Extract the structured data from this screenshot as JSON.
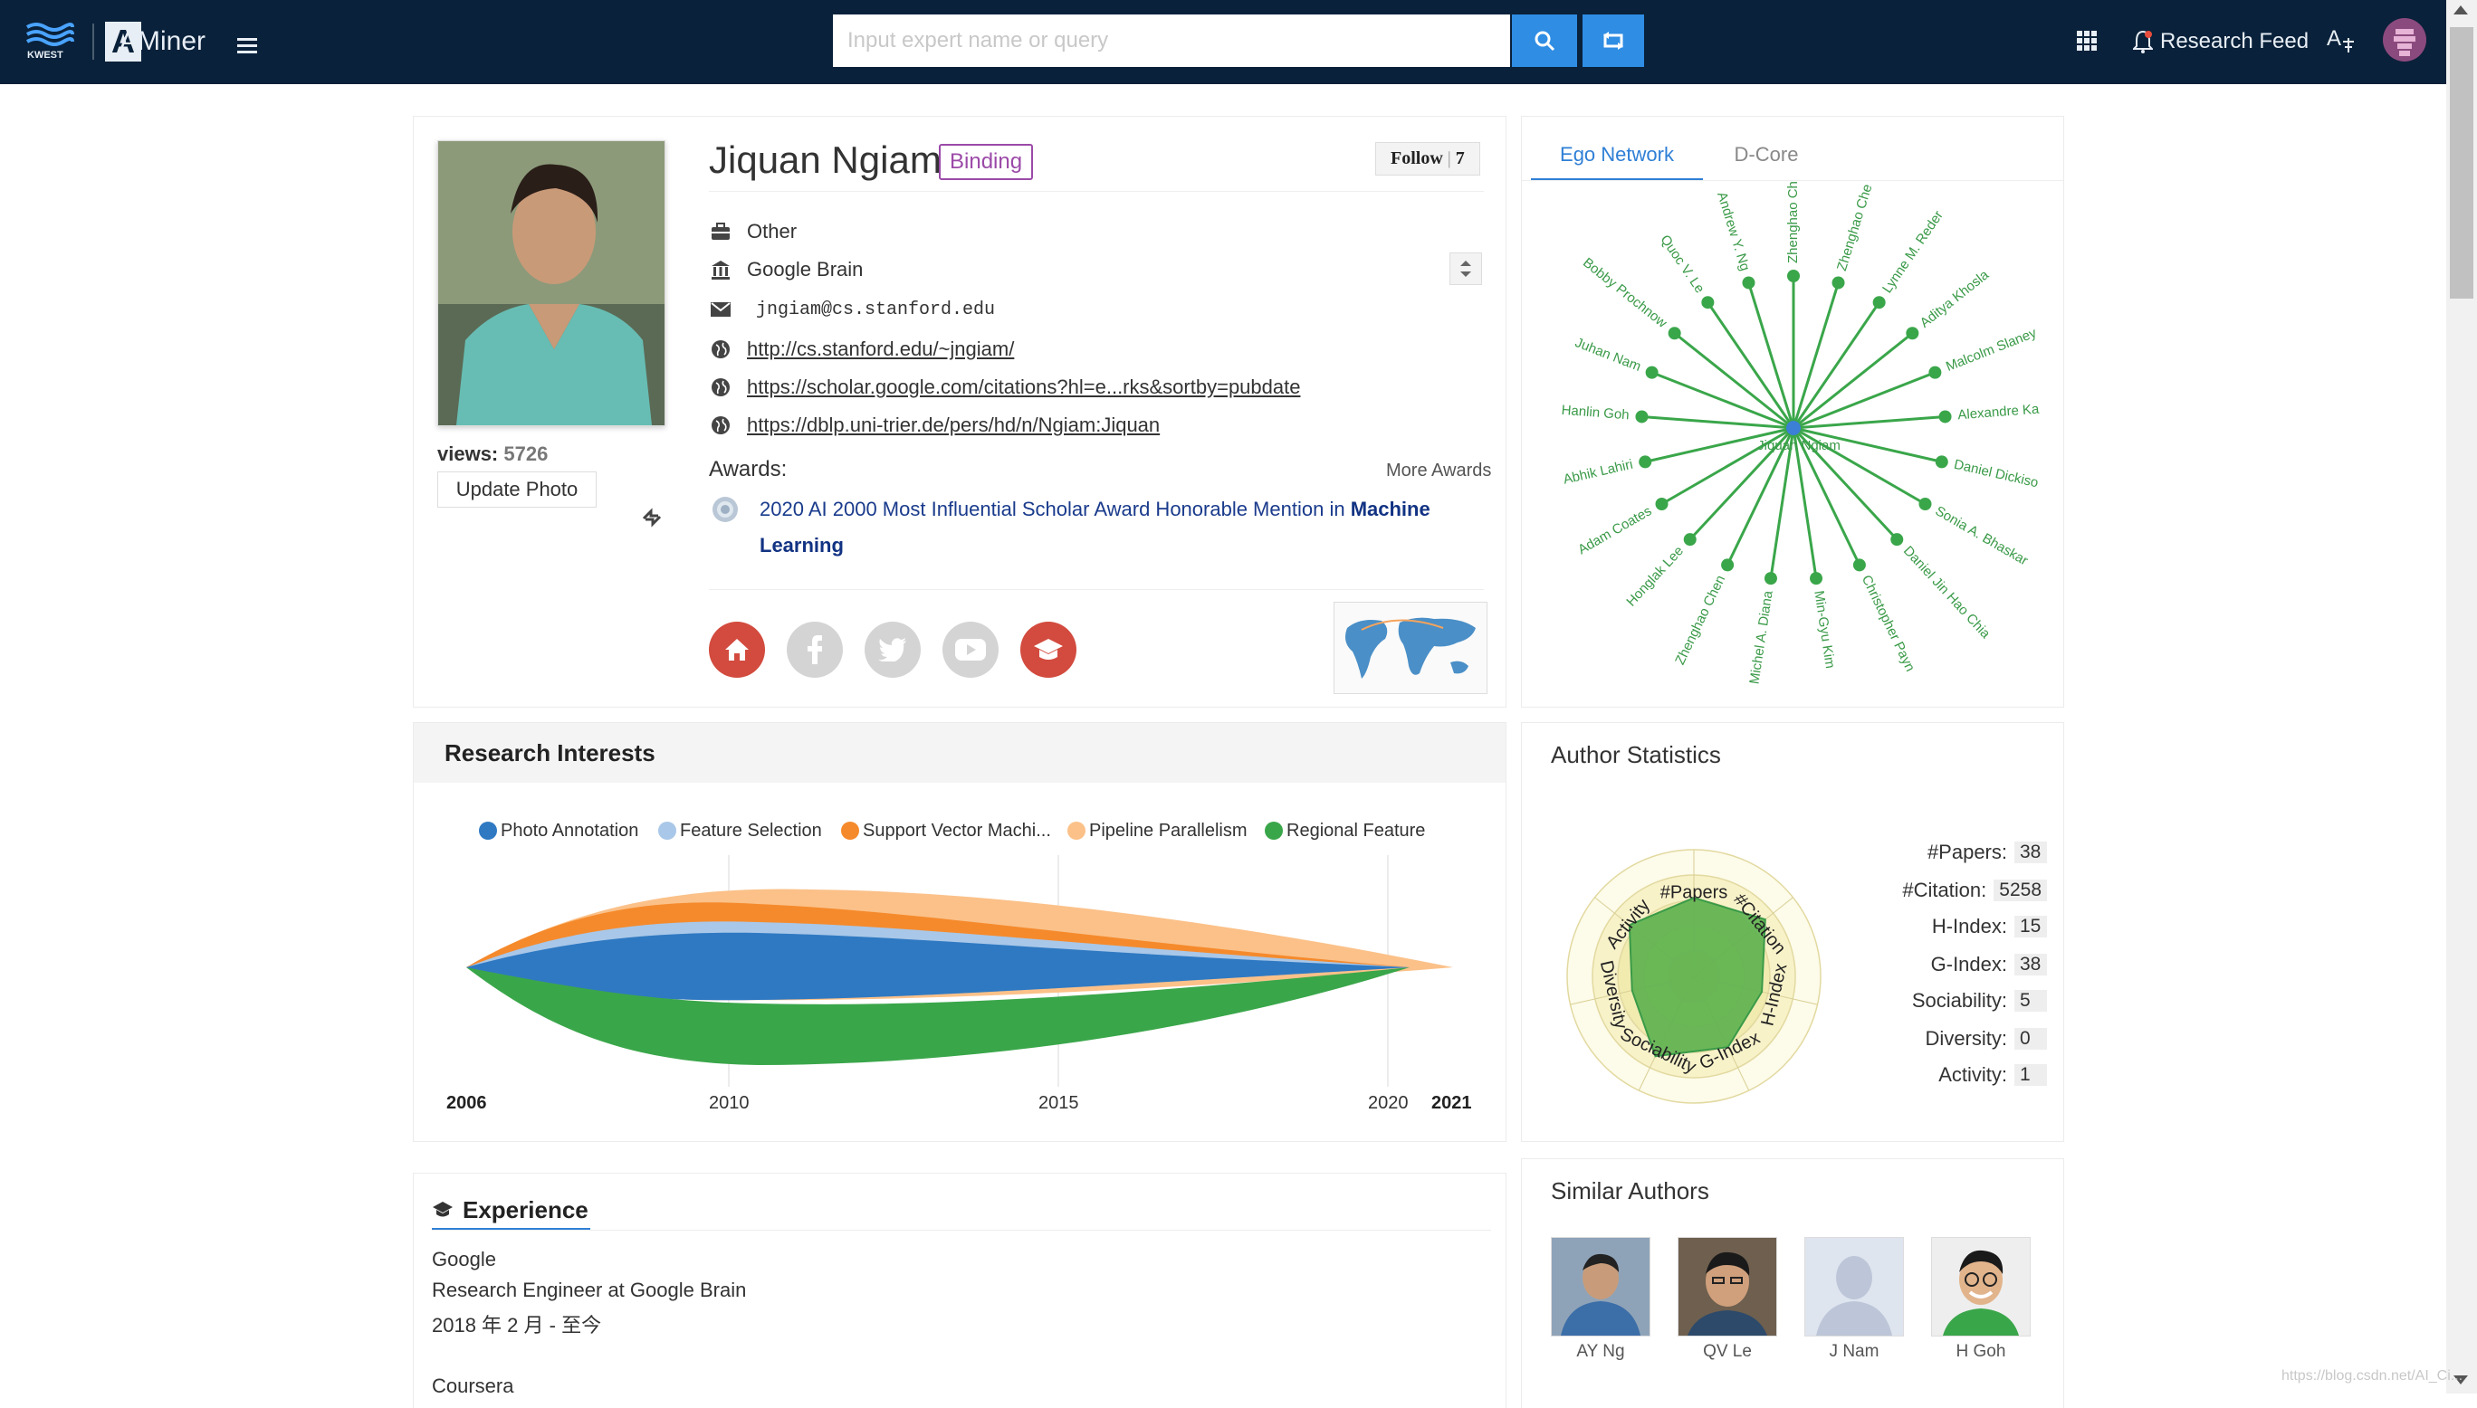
{
  "topbar": {
    "logo_text": "AMiner",
    "kwest_text": "KWEST",
    "search_placeholder": "Input expert name or query",
    "research_feed": "Research Feed"
  },
  "profile": {
    "name": "Jiquan Ngiam",
    "binding": "Binding",
    "follow_label": "Follow",
    "follow_count": "7",
    "views_label": "views:",
    "views": "5726",
    "update_photo": "Update Photo",
    "position": "Other",
    "affiliation": "Google Brain",
    "email": "jngiam@cs.stanford.edu",
    "links": [
      "http://cs.stanford.edu/~jngiam/",
      "https://scholar.google.com/citations?hl=e...rks&sortby=pubdate",
      "https://dblp.uni-trier.de/pers/hd/n/Ngiam:Jiquan"
    ],
    "awards_label": "Awards:",
    "more_awards": "More Awards",
    "award_text": "2020 AI 2000 Most Influential Scholar Award Honorable Mention in",
    "award_field": "Machine Learning"
  },
  "ego": {
    "tabs": [
      "Ego Network",
      "D-Core"
    ],
    "center": "Jiquan Ngiam",
    "nodes": [
      "Zhenghao Chen",
      "Zhenghao Che",
      "Lynne M. Reder",
      "Aditya Khosla",
      "Malcolm Slaney",
      "Alexandre Ka",
      "Daniel Dickiso",
      "Sonia A. Bhaskar",
      "Daniel Jin Hao Chia",
      "Christopher Payn",
      "Min-Gyu Kim",
      "Michel A. Diana",
      "Zhenghao Chen",
      "Honglak Lee",
      "Adam Coates",
      "Abhik Lahiri",
      "Hanlin Goh",
      "Juhan Nam",
      "Bobby Prochnow",
      "Quoc V. Le",
      "Andrew Y. Ng"
    ],
    "node_color": "#3aa64a",
    "center_color": "#3b7fd6"
  },
  "research": {
    "title": "Research Interests",
    "legend": [
      {
        "name": "Photo Annotation",
        "color": "#2f79c2"
      },
      {
        "name": "Feature Selection",
        "color": "#a9c7e8"
      },
      {
        "name": "Support Vector Machi...",
        "color": "#f58a2c"
      },
      {
        "name": "Pipeline Parallelism",
        "color": "#fbc189"
      },
      {
        "name": "Regional Feature",
        "color": "#3aa64a"
      }
    ],
    "axis": [
      "2006",
      "2010",
      "2015",
      "2020",
      "2021"
    ]
  },
  "stats": {
    "title": "Author Statistics",
    "rows": [
      {
        "label": "#Papers:",
        "value": "38"
      },
      {
        "label": "#Citation:",
        "value": "5258"
      },
      {
        "label": "H-Index:",
        "value": "15"
      },
      {
        "label": "G-Index:",
        "value": "38"
      },
      {
        "label": "Sociability:",
        "value": "5"
      },
      {
        "label": "Diversity:",
        "value": "0"
      },
      {
        "label": "Activity:",
        "value": "1"
      }
    ],
    "radar_axes": [
      "#Papers",
      "#Citation",
      "H-Index",
      "G-Index",
      "Sociability",
      "Diversity",
      "Activity"
    ]
  },
  "experience": {
    "title": "Experience",
    "org": "Google",
    "role": "Research Engineer at Google Brain",
    "dates": "2018 年 2 月 - 至今",
    "org2": "Coursera"
  },
  "similar": {
    "title": "Similar Authors",
    "authors": [
      "AY Ng",
      "QV Le",
      "J Nam",
      "H Goh"
    ]
  },
  "watermark": "https://blog.csdn.net/AI_Ci..."
}
